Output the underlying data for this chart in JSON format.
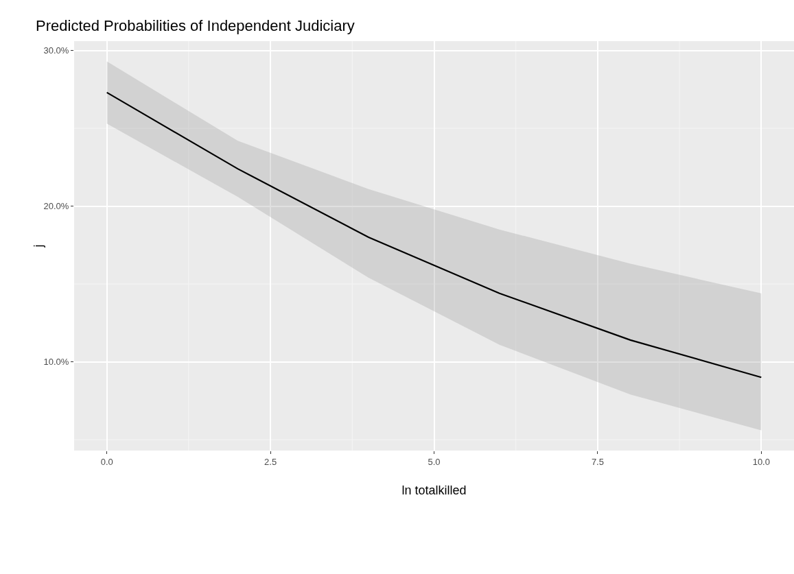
{
  "chart_data": {
    "type": "line",
    "title": "Predicted Probabilities of Independent Judiciary",
    "xlabel": "ln totalkilled",
    "ylabel": "j",
    "x": [
      0,
      2,
      4,
      6,
      8,
      10
    ],
    "series": [
      {
        "color": "#000000",
        "values": [
          27.3,
          22.4,
          18.0,
          14.4,
          11.4,
          9.0
        ],
        "lower": [
          25.3,
          20.6,
          15.4,
          11.1,
          7.9,
          5.6
        ],
        "upper": [
          29.3,
          24.2,
          21.1,
          18.5,
          16.3,
          14.4
        ]
      }
    ],
    "xlim": [
      -0.5,
      10.5
    ],
    "xticks": [
      {
        "value": 0,
        "label": "0.0"
      },
      2.5,
      {
        "value": 5,
        "label": "5.0"
      },
      7.5,
      {
        "value": 10,
        "label": "10.0"
      }
    ],
    "ylim": [
      4.3,
      30.6
    ],
    "yticks": [
      {
        "value": 10,
        "label": "10.0%"
      },
      {
        "value": 20,
        "label": "20.0%"
      },
      {
        "value": 30,
        "label": "30.0%"
      }
    ],
    "grid": true,
    "marker": "none",
    "line_style": "solid"
  }
}
